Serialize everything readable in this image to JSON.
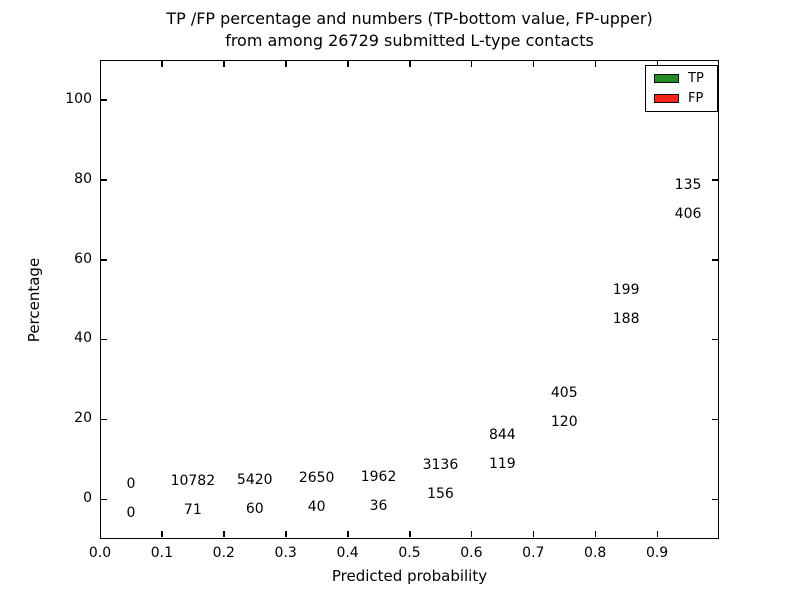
{
  "title": {
    "line1": "TP /FP percentage and numbers (TP-bottom value, FP-upper)",
    "line2": "from among 26729 submitted L-type contacts"
  },
  "chart_data": {
    "type": "bar",
    "stacked_percentage": true,
    "title": "TP /FP percentage and numbers (TP-bottom value, FP-upper) from among 26729 submitted L-type contacts",
    "total_submitted_contacts": 26729,
    "xlabel": "Predicted probability",
    "ylabel": "Percentage",
    "xlim": [
      0.0,
      1.0
    ],
    "ylim": [
      -10,
      110
    ],
    "xticks": [
      0.0,
      0.1,
      0.2,
      0.3,
      0.4,
      0.5,
      0.6,
      0.7,
      0.8,
      0.9
    ],
    "xtick_labels": [
      "0.0",
      "0.1",
      "0.2",
      "0.3",
      "0.4",
      "0.5",
      "0.6",
      "0.7",
      "0.8",
      "0.9"
    ],
    "yticks": [
      0,
      20,
      40,
      60,
      80,
      100
    ],
    "ytick_labels": [
      "0",
      "20",
      "40",
      "60",
      "80",
      "100"
    ],
    "grid": "dotted both axes",
    "legend": {
      "position": "upper right",
      "entries": [
        {
          "label": "TP",
          "color": "#228b22"
        },
        {
          "label": "FP",
          "color": "#fb231a"
        }
      ]
    },
    "colors": {
      "tp": "#228b22",
      "fp": "#fb231a",
      "bar_edge": "#ffffff"
    },
    "bins": [
      {
        "range": [
          0.0,
          0.1
        ],
        "tp": 0,
        "fp": 0
      },
      {
        "range": [
          0.1,
          0.2
        ],
        "tp": 71,
        "fp": 10782
      },
      {
        "range": [
          0.2,
          0.3
        ],
        "tp": 60,
        "fp": 5420
      },
      {
        "range": [
          0.3,
          0.4
        ],
        "tp": 40,
        "fp": 2650
      },
      {
        "range": [
          0.4,
          0.5
        ],
        "tp": 36,
        "fp": 1962
      },
      {
        "range": [
          0.5,
          0.6
        ],
        "tp": 156,
        "fp": 3136
      },
      {
        "range": [
          0.6,
          0.7
        ],
        "tp": 119,
        "fp": 844
      },
      {
        "range": [
          0.7,
          0.8
        ],
        "tp": 120,
        "fp": 405
      },
      {
        "range": [
          0.8,
          0.9
        ],
        "tp": 188,
        "fp": 199
      },
      {
        "range": [
          0.9,
          1.0
        ],
        "tp": 406,
        "fp": 135
      }
    ]
  }
}
